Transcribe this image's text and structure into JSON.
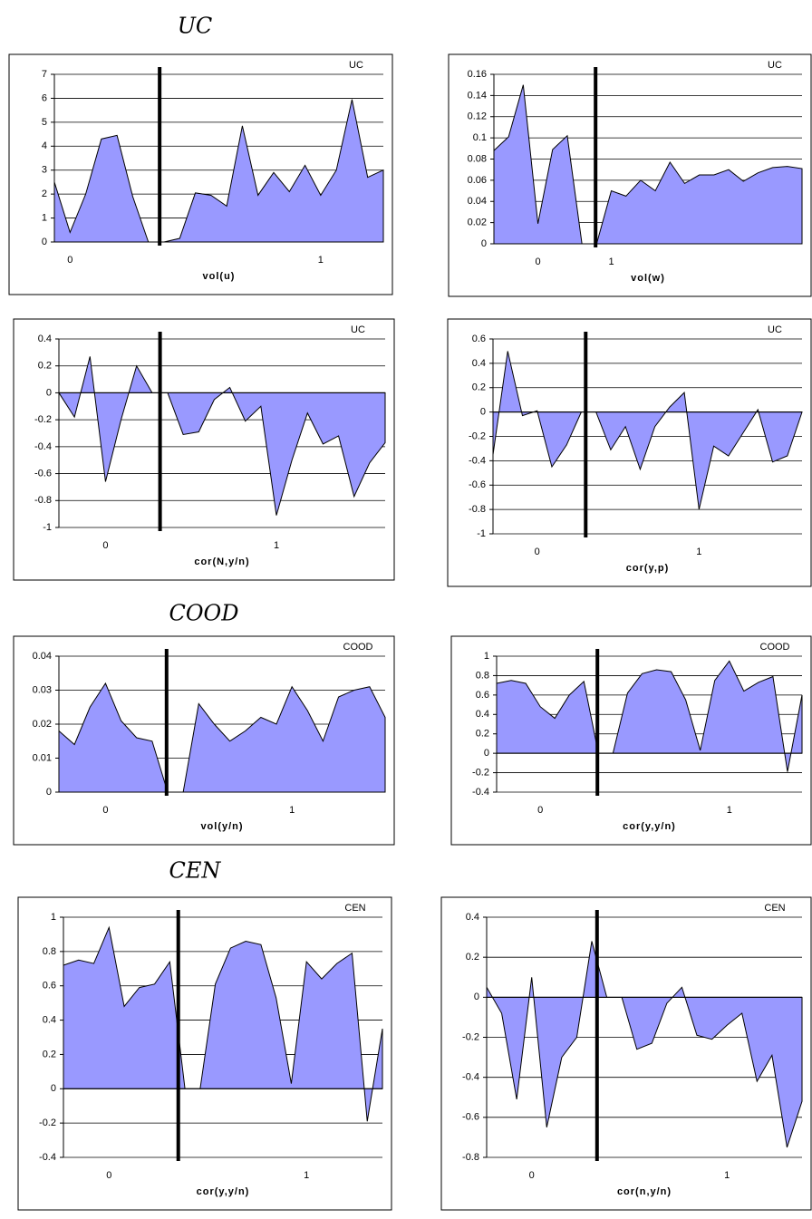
{
  "headings": [
    "UC",
    "COOD",
    "CEN"
  ],
  "chart_data": [
    {
      "type": "area",
      "label": "UC",
      "xlabel": "vol(u)",
      "color": "#9999ff",
      "grid": true,
      "categories": [
        null,
        "0",
        null,
        null,
        null,
        null,
        null,
        null,
        null,
        null,
        null,
        null,
        null,
        null,
        null,
        null,
        null,
        "1",
        null,
        null,
        null,
        null
      ],
      "values": [
        2.5,
        0.4,
        2.0,
        4.3,
        4.45,
        1.9,
        0,
        0,
        0.15,
        2.05,
        1.95,
        1.5,
        4.85,
        1.95,
        2.9,
        2.1,
        3.2,
        1.95,
        3.0,
        5.95,
        2.7,
        3.0
      ],
      "ylim": [
        0,
        7
      ],
      "yticks": [
        0,
        1,
        2,
        3,
        4,
        5,
        6,
        7
      ]
    },
    {
      "type": "area",
      "label": "UC",
      "xlabel": "vol(w)",
      "color": "#9999ff",
      "grid": true,
      "categories": [
        null,
        null,
        null,
        "0",
        null,
        null,
        null,
        null,
        "1",
        null,
        null,
        null,
        null,
        null,
        null,
        null,
        null,
        null,
        null,
        null,
        null,
        null
      ],
      "values": [
        0.088,
        0.101,
        0.15,
        0.019,
        0.089,
        0.102,
        0,
        0,
        0.05,
        0.045,
        0.06,
        0.05,
        0.077,
        0.057,
        0.065,
        0.065,
        0.07,
        0.059,
        0.067,
        0.072,
        0.073,
        0.071
      ],
      "ylim": [
        0,
        0.16
      ],
      "yticks": [
        0,
        0.02,
        0.04,
        0.06,
        0.08,
        0.1,
        0.12,
        0.14,
        0.16
      ]
    },
    {
      "type": "area",
      "label": "UC",
      "xlabel": "cor(N,y/n)",
      "color": "#9999ff",
      "grid": true,
      "categories": [
        null,
        null,
        null,
        "0",
        null,
        null,
        null,
        null,
        null,
        null,
        null,
        null,
        null,
        null,
        "1",
        null,
        null,
        null,
        null,
        null,
        null,
        null
      ],
      "values": [
        0,
        -0.18,
        0.27,
        -0.66,
        -0.2,
        0.2,
        0,
        0,
        -0.31,
        -0.29,
        -0.05,
        0.04,
        -0.21,
        -0.1,
        -0.91,
        -0.5,
        -0.15,
        -0.38,
        -0.32,
        -0.77,
        -0.52,
        -0.37
      ],
      "ylim": [
        -1,
        0.4
      ],
      "yticks": [
        -1,
        -0.8,
        -0.6,
        -0.4,
        -0.2,
        0,
        0.2,
        0.4
      ]
    },
    {
      "type": "area",
      "label": "UC",
      "xlabel": "cor(y,p)",
      "color": "#9999ff",
      "grid": true,
      "categories": [
        null,
        null,
        null,
        "0",
        null,
        null,
        null,
        null,
        null,
        null,
        null,
        null,
        null,
        null,
        "1",
        null,
        null,
        null,
        null,
        null,
        null,
        null
      ],
      "values": [
        -0.35,
        0.5,
        -0.03,
        0.01,
        -0.45,
        -0.27,
        0,
        0,
        -0.31,
        -0.12,
        -0.47,
        -0.12,
        0.04,
        0.16,
        -0.8,
        -0.28,
        -0.36,
        -0.17,
        0.02,
        -0.41,
        -0.36,
        0
      ],
      "ylim": [
        -1,
        0.6
      ],
      "yticks": [
        -1,
        -0.8,
        -0.6,
        -0.4,
        -0.2,
        0,
        0.2,
        0.4,
        0.6
      ]
    },
    {
      "type": "area",
      "label": "COOD",
      "xlabel": "vol(y/n)",
      "color": "#9999ff",
      "grid": true,
      "categories": [
        null,
        null,
        null,
        "0",
        null,
        null,
        null,
        null,
        null,
        null,
        null,
        null,
        null,
        null,
        null,
        "1",
        null,
        null,
        null,
        null,
        null,
        null
      ],
      "values": [
        0.018,
        0.014,
        0.025,
        0.032,
        0.021,
        0.016,
        0.015,
        0,
        0,
        0.026,
        0.02,
        0.015,
        0.018,
        0.022,
        0.02,
        0.031,
        0.024,
        0.015,
        0.028,
        0.03,
        0.031,
        0.022
      ],
      "ylim": [
        0,
        0.04
      ],
      "yticks": [
        0,
        0.01,
        0.02,
        0.03,
        0.04
      ]
    },
    {
      "type": "area",
      "label": "COOD",
      "xlabel": "cor(y,y/n)",
      "color": "#9999ff",
      "grid": true,
      "categories": [
        null,
        null,
        null,
        "0",
        null,
        null,
        null,
        null,
        null,
        null,
        null,
        null,
        null,
        null,
        null,
        null,
        "1",
        null,
        null,
        null,
        null,
        null
      ],
      "values": [
        0.72,
        0.75,
        0.72,
        0.48,
        0.36,
        0.6,
        0.74,
        0,
        0,
        0.62,
        0.82,
        0.86,
        0.84,
        0.55,
        0.03,
        0.75,
        0.95,
        0.64,
        0.73,
        0.79,
        -0.19,
        0.6
      ],
      "ylim": [
        -0.4,
        1
      ],
      "yticks": [
        -0.4,
        -0.2,
        0,
        0.2,
        0.4,
        0.6,
        0.8,
        1
      ]
    },
    {
      "type": "area",
      "label": "CEN",
      "xlabel": "cor(y,y/n)",
      "color": "#9999ff",
      "grid": true,
      "categories": [
        null,
        null,
        null,
        "0",
        null,
        null,
        null,
        null,
        null,
        null,
        null,
        null,
        null,
        null,
        null,
        null,
        "1",
        null,
        null,
        null,
        null,
        null
      ],
      "values": [
        0.72,
        0.75,
        0.73,
        0.94,
        0.48,
        0.59,
        0.61,
        0.74,
        0,
        0,
        0.61,
        0.82,
        0.86,
        0.84,
        0.53,
        0.03,
        0.74,
        0.64,
        0.73,
        0.79,
        -0.19,
        0.35
      ],
      "ylim": [
        -0.4,
        1
      ],
      "yticks": [
        -0.4,
        -0.2,
        0,
        0.2,
        0.4,
        0.6,
        0.8,
        1
      ]
    },
    {
      "type": "area",
      "label": "CEN",
      "xlabel": "cor(n,y/n)",
      "color": "#9999ff",
      "grid": true,
      "categories": [
        null,
        null,
        null,
        "0",
        null,
        null,
        null,
        null,
        null,
        null,
        null,
        null,
        null,
        null,
        null,
        null,
        "1",
        null,
        null,
        null,
        null,
        null
      ],
      "values": [
        0.05,
        -0.08,
        -0.51,
        0.1,
        -0.65,
        -0.3,
        -0.2,
        0.28,
        0,
        0,
        -0.26,
        -0.23,
        -0.03,
        0.05,
        -0.19,
        -0.21,
        -0.14,
        -0.08,
        -0.42,
        -0.29,
        -0.75,
        -0.52
      ],
      "ylim": [
        -0.8,
        0.4
      ],
      "yticks": [
        -0.8,
        -0.6,
        -0.4,
        -0.2,
        0,
        0.2,
        0.4
      ]
    }
  ]
}
